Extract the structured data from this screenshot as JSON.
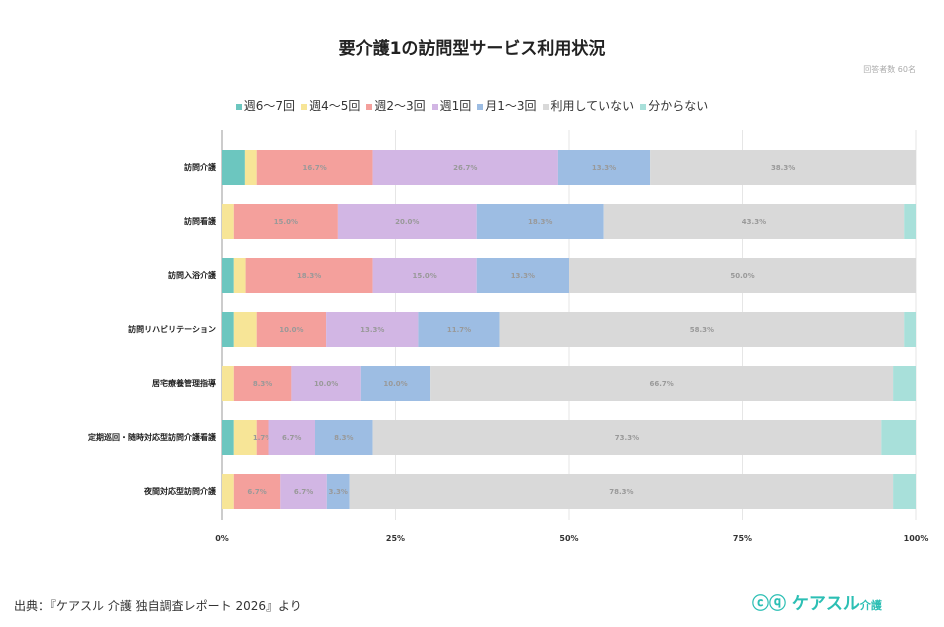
{
  "chart_data": {
    "type": "bar",
    "orientation": "horizontal-stacked-100",
    "title": "要介護1の訪問型サービス利用状況",
    "subtitle": "回答者数 60名",
    "categories": [
      "訪問介護",
      "訪問看護",
      "訪問入浴介護",
      "訪問リハビリテーション",
      "居宅療養管理指導",
      "定期巡回・随時対応型訪問介護看護",
      "夜間対応型訪問介護"
    ],
    "series": [
      {
        "name": "週6〜7回",
        "color": "#6cc6bf",
        "values": [
          3.3,
          0,
          1.7,
          1.7,
          0,
          1.7,
          0
        ]
      },
      {
        "name": "週4〜5回",
        "color": "#f7e597",
        "values": [
          1.7,
          1.7,
          1.7,
          3.3,
          1.7,
          3.3,
          1.7
        ]
      },
      {
        "name": "週2〜3回",
        "color": "#f4a09c",
        "values": [
          16.7,
          15.0,
          18.3,
          10.0,
          8.3,
          1.7,
          6.7
        ]
      },
      {
        "name": "週1回",
        "color": "#d2b6e4",
        "values": [
          26.7,
          20.0,
          15.0,
          13.3,
          10.0,
          6.7,
          6.7
        ]
      },
      {
        "name": "月1〜3回",
        "color": "#9dbde3",
        "values": [
          13.3,
          18.3,
          13.3,
          11.7,
          10.0,
          8.3,
          3.3
        ]
      },
      {
        "name": "利用していない",
        "color": "#d9d9d9",
        "values": [
          38.3,
          43.3,
          50.0,
          58.3,
          66.7,
          73.3,
          78.3
        ]
      },
      {
        "name": "分からない",
        "color": "#a8e0da",
        "values": [
          0,
          1.7,
          0,
          1.7,
          3.3,
          5.0,
          3.3
        ]
      }
    ],
    "labeled_series_from_index": 2,
    "xlim": [
      0,
      100
    ],
    "xticks": [
      "0%",
      "25%",
      "50%",
      "75%",
      "100%"
    ],
    "grid": true,
    "legend_position": "top"
  },
  "footer": {
    "source": "出典：『ケアスル 介護 独自調査レポート 2026』より"
  },
  "logo": {
    "text": "ケアスル",
    "sub": "介護"
  }
}
